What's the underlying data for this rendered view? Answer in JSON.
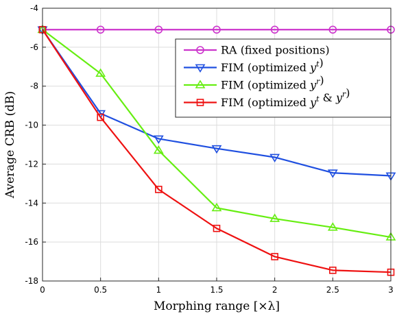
{
  "chart_data": {
    "type": "line",
    "title": "",
    "xlabel": "Morphing range [×λ]",
    "ylabel": "Average CRB (dB)",
    "xlim": [
      0,
      3
    ],
    "ylim": [
      -18,
      -4
    ],
    "xticks": [
      0,
      0.5,
      1,
      1.5,
      2,
      2.5,
      3
    ],
    "xtick_labels": [
      "0",
      "0.5",
      "1",
      "1.5",
      "2",
      "2.5",
      "3"
    ],
    "yticks": [
      -18,
      -16,
      -14,
      -12,
      -10,
      -8,
      -6,
      -4
    ],
    "ytick_labels": [
      "-18",
      "-16",
      "-14",
      "-12",
      "-10",
      "-8",
      "-6",
      "-4"
    ],
    "grid": true,
    "legend_position": "top-right",
    "x": [
      0,
      0.5,
      1,
      1.5,
      2,
      2.5,
      3
    ],
    "series": [
      {
        "name": "RA (fixed positions)",
        "color": "#cc33cc",
        "marker": "circle",
        "values": [
          -5.1,
          -5.1,
          -5.1,
          -5.1,
          -5.1,
          -5.1,
          -5.1
        ]
      },
      {
        "name": "FIM (optimized y^t)",
        "color": "#1f4fe0",
        "marker": "triangle-down",
        "values": [
          -5.1,
          -9.4,
          -10.7,
          -11.2,
          -11.65,
          -12.45,
          -12.6
        ]
      },
      {
        "name": "FIM (optimized y^r)",
        "color": "#66ee11",
        "marker": "triangle-up",
        "values": [
          -5.1,
          -7.35,
          -11.3,
          -14.25,
          -14.8,
          -15.25,
          -15.75
        ]
      },
      {
        "name": "FIM (optimized y^t & y^r)",
        "color": "#ee1111",
        "marker": "square",
        "values": [
          -5.1,
          -9.6,
          -13.3,
          -15.3,
          -16.75,
          -17.45,
          -17.55
        ]
      }
    ]
  }
}
